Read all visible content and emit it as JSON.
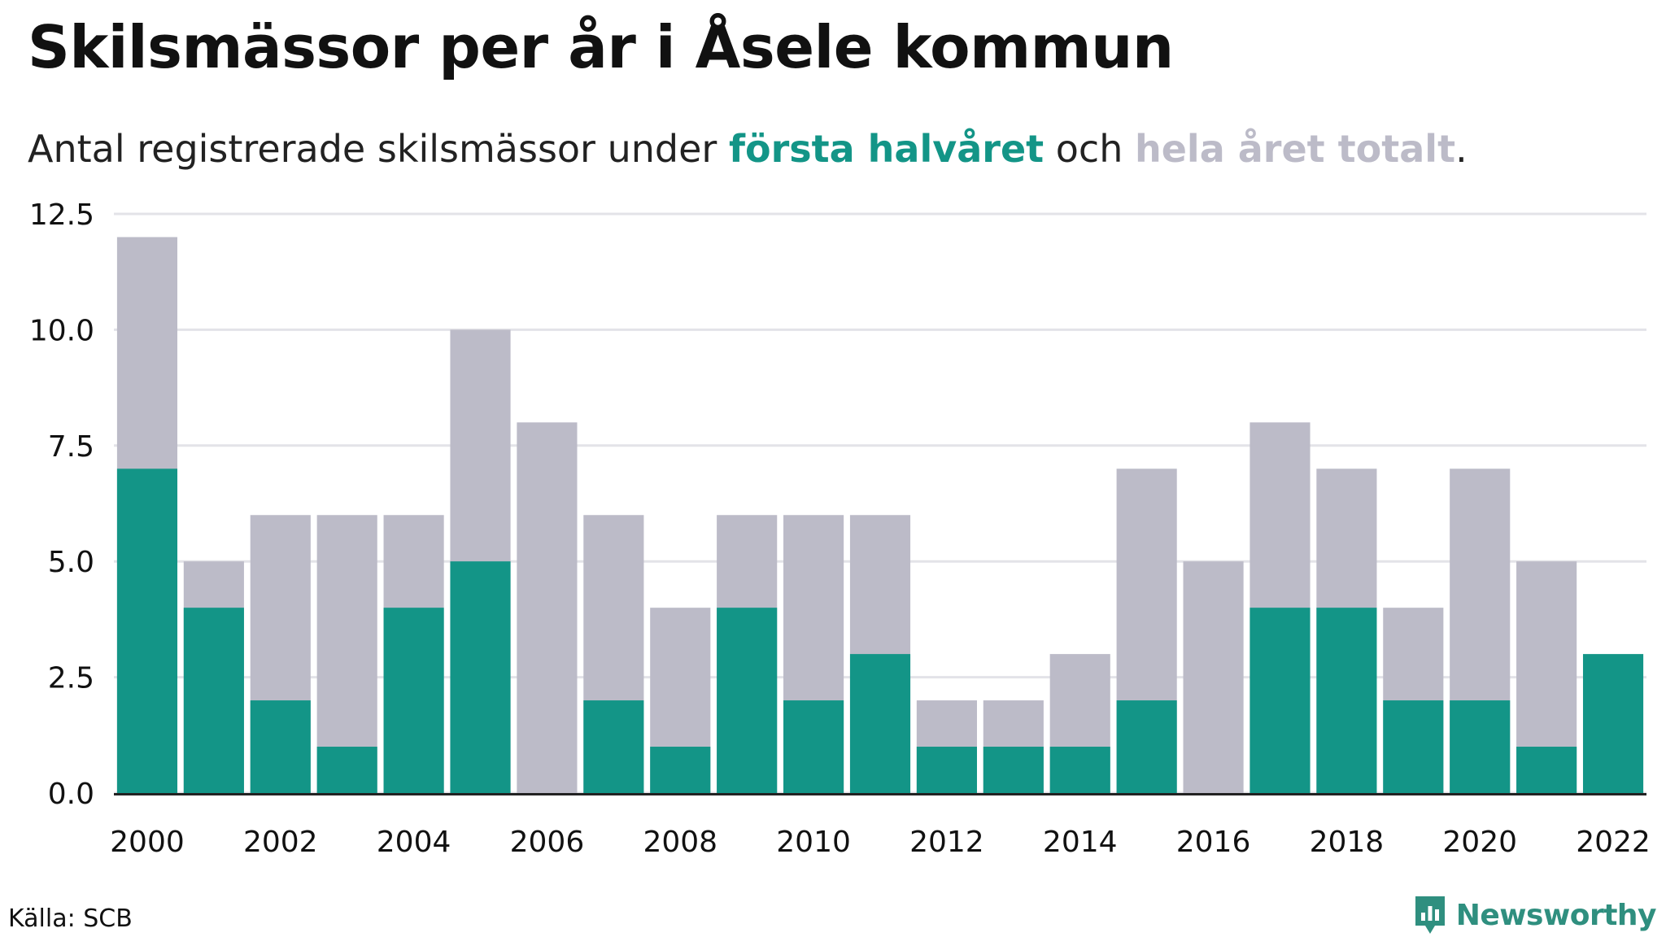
{
  "title": "Skilsmässor per år i Åsele kommun",
  "subtitle": {
    "prefix": "Antal registrerade skilsmässor under ",
    "first_half": "första halvåret",
    "middle": " och ",
    "full_year": "hela året totalt",
    "suffix": "."
  },
  "colors": {
    "first_half": "#139587",
    "full_year": "#bcbbc8",
    "grid": "#e3e3e8",
    "axis": "#222222"
  },
  "source": "Källa: SCB",
  "brand": {
    "name": "Newsworthy",
    "icon": "newsworthy-logo-icon"
  },
  "chart_data": {
    "type": "bar",
    "stacking": "overlay",
    "categories": [
      "2000",
      "2001",
      "2002",
      "2003",
      "2004",
      "2005",
      "2006",
      "2007",
      "2008",
      "2009",
      "2010",
      "2011",
      "2012",
      "2013",
      "2014",
      "2015",
      "2016",
      "2017",
      "2018",
      "2019",
      "2020",
      "2021",
      "2022"
    ],
    "series": [
      {
        "key": "full_year",
        "values": [
          12,
          5,
          6,
          6,
          6,
          10,
          8,
          6,
          4,
          6,
          6,
          6,
          2,
          2,
          3,
          7,
          5,
          8,
          7,
          4,
          7,
          5,
          null
        ]
      },
      {
        "key": "first_half",
        "values": [
          7,
          4,
          2,
          1,
          4,
          5,
          0,
          2,
          1,
          4,
          2,
          3,
          1,
          1,
          1,
          2,
          0,
          4,
          4,
          2,
          2,
          1,
          3
        ]
      }
    ],
    "ylim": [
      0,
      12.5
    ],
    "yticks": [
      "0.0",
      "2.5",
      "5.0",
      "7.5",
      "10.0",
      "12.5"
    ],
    "xtick_labels": [
      "2000",
      "2002",
      "2004",
      "2006",
      "2008",
      "2010",
      "2012",
      "2014",
      "2016",
      "2018",
      "2020",
      "2022"
    ],
    "grid": true,
    "xlabel": "",
    "ylabel": ""
  }
}
